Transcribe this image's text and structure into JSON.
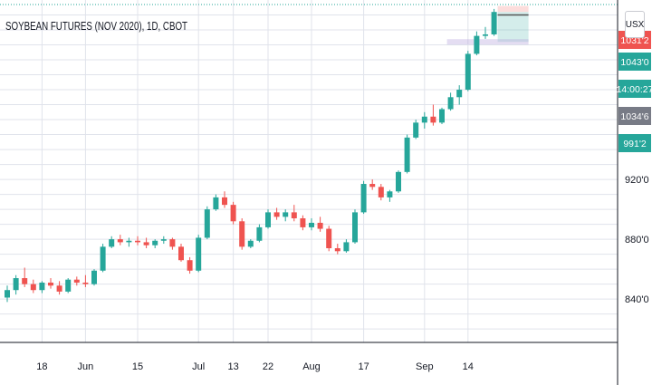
{
  "header": {
    "title": "SOYBEAN FUTURES (NOV 2020), 1D, CBOT",
    "currency": "USX"
  },
  "chart_data": {
    "type": "candlestick",
    "title": "SOYBEAN FUTURES (NOV 2020), 1D, CBOT",
    "ylim": [
      8110,
      10400
    ],
    "y_ticks": [
      8400,
      8800,
      9200
    ],
    "y_tick_labels": [
      "840'0",
      "880'0",
      "920'0"
    ],
    "x_ticks": [
      {
        "label": "18",
        "index": 4
      },
      {
        "label": "Jun",
        "index": 9
      },
      {
        "label": "15",
        "index": 15
      },
      {
        "label": "Jul",
        "index": 22
      },
      {
        "label": "13",
        "index": 26
      },
      {
        "label": "22",
        "index": 30
      },
      {
        "label": "Aug",
        "index": 35
      },
      {
        "label": "17",
        "index": 41
      },
      {
        "label": "Sep",
        "index": 48
      },
      {
        "label": "14",
        "index": 53
      }
    ],
    "ohlc": [
      [
        8410,
        8490,
        8380,
        8460
      ],
      [
        8460,
        8560,
        8430,
        8540
      ],
      [
        8540,
        8610,
        8480,
        8500
      ],
      [
        8500,
        8530,
        8440,
        8460
      ],
      [
        8460,
        8520,
        8440,
        8510
      ],
      [
        8510,
        8540,
        8470,
        8490
      ],
      [
        8490,
        8520,
        8430,
        8450
      ],
      [
        8450,
        8540,
        8440,
        8530
      ],
      [
        8530,
        8550,
        8490,
        8510
      ],
      [
        8510,
        8560,
        8480,
        8500
      ],
      [
        8500,
        8600,
        8490,
        8590
      ],
      [
        8590,
        8770,
        8580,
        8750
      ],
      [
        8750,
        8820,
        8740,
        8800
      ],
      [
        8800,
        8830,
        8760,
        8780
      ],
      [
        8780,
        8810,
        8750,
        8790
      ],
      [
        8790,
        8820,
        8760,
        8780
      ],
      [
        8780,
        8810,
        8740,
        8760
      ],
      [
        8760,
        8800,
        8740,
        8790
      ],
      [
        8790,
        8820,
        8770,
        8800
      ],
      [
        8800,
        8810,
        8730,
        8750
      ],
      [
        8750,
        8770,
        8650,
        8660
      ],
      [
        8660,
        8680,
        8570,
        8590
      ],
      [
        8590,
        8830,
        8580,
        8810
      ],
      [
        8810,
        9020,
        8800,
        9000
      ],
      [
        9000,
        9100,
        8990,
        9080
      ],
      [
        9080,
        9120,
        9010,
        9030
      ],
      [
        9030,
        9050,
        8900,
        8920
      ],
      [
        8920,
        8940,
        8730,
        8750
      ],
      [
        8750,
        8800,
        8740,
        8790
      ],
      [
        8790,
        8900,
        8780,
        8880
      ],
      [
        8880,
        9000,
        8870,
        8980
      ],
      [
        8980,
        9010,
        8930,
        8950
      ],
      [
        8950,
        9000,
        8920,
        8980
      ],
      [
        8980,
        9030,
        8920,
        8940
      ],
      [
        8940,
        8960,
        8860,
        8880
      ],
      [
        8880,
        8940,
        8860,
        8910
      ],
      [
        8910,
        8950,
        8850,
        8870
      ],
      [
        8870,
        8890,
        8720,
        8740
      ],
      [
        8740,
        8770,
        8700,
        8720
      ],
      [
        8720,
        8800,
        8710,
        8780
      ],
      [
        8780,
        9000,
        8770,
        8980
      ],
      [
        8980,
        9190,
        8970,
        9170
      ],
      [
        9170,
        9200,
        9130,
        9150
      ],
      [
        9150,
        9170,
        9060,
        9080
      ],
      [
        9080,
        9130,
        9050,
        9120
      ],
      [
        9120,
        9260,
        9110,
        9250
      ],
      [
        9250,
        9500,
        9240,
        9480
      ],
      [
        9480,
        9600,
        9470,
        9580
      ],
      [
        9580,
        9650,
        9540,
        9620
      ],
      [
        9620,
        9700,
        9560,
        9580
      ],
      [
        9580,
        9680,
        9570,
        9670
      ],
      [
        9670,
        9780,
        9660,
        9750
      ],
      [
        9750,
        9830,
        9700,
        9800
      ],
      [
        9800,
        10060,
        9790,
        10040
      ],
      [
        10040,
        10190,
        10030,
        10160
      ],
      [
        10160,
        10220,
        10140,
        10170
      ],
      [
        10170,
        10340,
        10160,
        10320
      ]
    ],
    "last_price_label": "1031'2",
    "markers": [
      {
        "label": "1043'0",
        "value": 10300
      },
      {
        "label": "14:00:27",
        "value": 10210
      },
      {
        "label": "1034'6",
        "value": 10120
      },
      {
        "label": "991'2",
        "value": 10020
      }
    ],
    "colors": {
      "up": "#26a69a",
      "down": "#ef5350",
      "grid": "#e0e3eb",
      "axis_text": "#131722",
      "label_green": "#26a69a",
      "label_gray": "#787b86",
      "label_red": "#ef5350"
    },
    "grid": true
  }
}
